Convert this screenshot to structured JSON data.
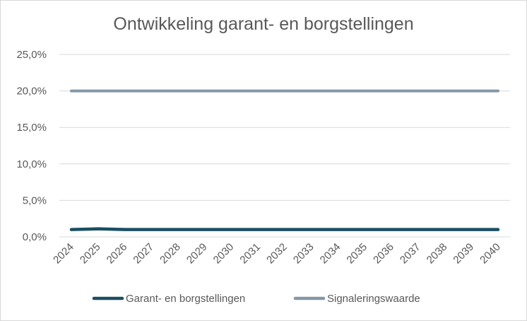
{
  "chart_data": {
    "type": "line",
    "title": "Ontwikkeling garant- en borgstellingen",
    "xlabel": "",
    "ylabel": "",
    "categories": [
      "2024",
      "2025",
      "2026",
      "2027",
      "2028",
      "2029",
      "2030",
      "2031",
      "2032",
      "2033",
      "2034",
      "2035",
      "2036",
      "2037",
      "2038",
      "2039",
      "2040"
    ],
    "series": [
      {
        "name": "Garant- en borgstellingen",
        "color": "#1a4e63",
        "values": [
          1.0,
          1.1,
          1.0,
          1.0,
          1.0,
          1.0,
          1.0,
          1.0,
          1.0,
          1.0,
          1.0,
          1.0,
          1.0,
          1.0,
          1.0,
          1.0,
          1.0
        ]
      },
      {
        "name": "Signaleringswaarde",
        "color": "#8497a6",
        "values": [
          20,
          20,
          20,
          20,
          20,
          20,
          20,
          20,
          20,
          20,
          20,
          20,
          20,
          20,
          20,
          20,
          20
        ]
      }
    ],
    "ylim": [
      0,
      25
    ],
    "yticks": [
      "0,0%",
      "5,0%",
      "10,0%",
      "15,0%",
      "20,0%",
      "25,0%"
    ],
    "grid": true,
    "legend_position": "bottom"
  }
}
